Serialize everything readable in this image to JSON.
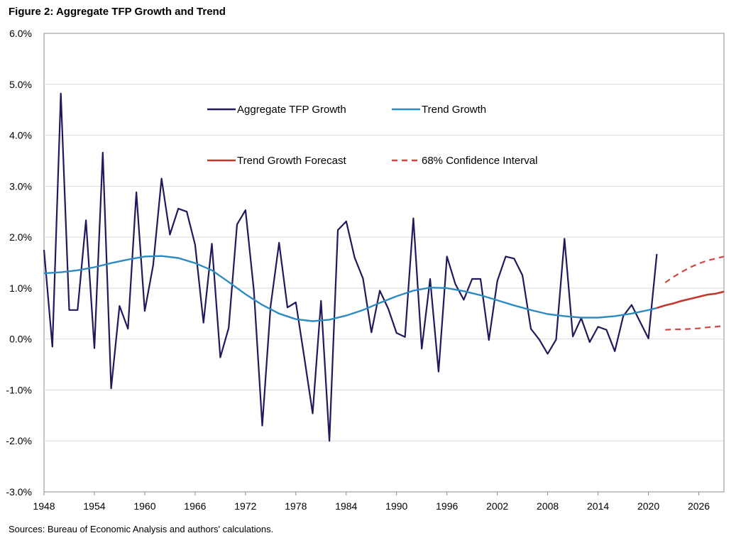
{
  "chart_data": {
    "type": "line",
    "title": "Figure 2: Aggregate TFP Growth and Trend",
    "source": "Sources: Bureau of Economic Analysis and authors' calculations.",
    "xlabel": "",
    "ylabel": "",
    "xlim": [
      1948,
      2029
    ],
    "ylim": [
      -3.0,
      6.0
    ],
    "y_ticks": [
      -3.0,
      -2.0,
      -1.0,
      0.0,
      1.0,
      2.0,
      3.0,
      4.0,
      5.0,
      6.0
    ],
    "y_tick_labels": [
      "-3.0%",
      "-2.0%",
      "-1.0%",
      "0.0%",
      "1.0%",
      "2.0%",
      "3.0%",
      "4.0%",
      "5.0%",
      "6.0%"
    ],
    "x_ticks": [
      1948,
      1954,
      1960,
      1966,
      1972,
      1978,
      1984,
      1990,
      1996,
      2002,
      2008,
      2014,
      2020,
      2026
    ],
    "x_tick_labels": [
      "1948",
      "1954",
      "1960",
      "1966",
      "1972",
      "1978",
      "1984",
      "1990",
      "1996",
      "2002",
      "2008",
      "2014",
      "2020",
      "2026"
    ],
    "grid": "horizontal",
    "legend_position": "upper-middle",
    "series": [
      {
        "name": "Aggregate TFP Growth",
        "color": "#1f1a5c",
        "style": "solid",
        "x": [
          1948,
          1949,
          1950,
          1951,
          1952,
          1953,
          1954,
          1955,
          1956,
          1957,
          1958,
          1959,
          1960,
          1961,
          1962,
          1963,
          1964,
          1965,
          1966,
          1967,
          1968,
          1969,
          1970,
          1971,
          1972,
          1973,
          1974,
          1975,
          1976,
          1977,
          1978,
          1979,
          1980,
          1981,
          1982,
          1983,
          1984,
          1985,
          1986,
          1987,
          1988,
          1989,
          1990,
          1991,
          1992,
          1993,
          1994,
          1995,
          1996,
          1997,
          1998,
          1999,
          2000,
          2001,
          2002,
          2003,
          2004,
          2005,
          2006,
          2007,
          2008,
          2009,
          2010,
          2011,
          2012,
          2013,
          2014,
          2015,
          2016,
          2017,
          2018,
          2019,
          2020,
          2021
        ],
        "values": [
          1.75,
          -0.15,
          4.82,
          0.57,
          0.57,
          2.33,
          -0.18,
          3.66,
          -0.97,
          0.65,
          0.2,
          2.88,
          0.55,
          1.45,
          3.15,
          2.05,
          2.56,
          2.5,
          1.85,
          0.32,
          1.87,
          -0.36,
          0.22,
          2.25,
          2.53,
          0.95,
          -1.7,
          0.65,
          1.89,
          0.62,
          0.72,
          -0.35,
          -1.46,
          0.75,
          -2.0,
          2.14,
          2.31,
          1.6,
          1.19,
          0.13,
          0.95,
          0.6,
          0.12,
          0.04,
          2.37,
          -0.19,
          1.18,
          -0.64,
          1.62,
          1.08,
          0.77,
          1.18,
          1.18,
          -0.02,
          1.14,
          1.62,
          1.58,
          1.25,
          0.2,
          -0.01,
          -0.29,
          -0.01,
          1.97,
          0.05,
          0.41,
          -0.06,
          0.24,
          0.18,
          -0.24,
          0.45,
          0.67,
          0.34,
          0.01,
          1.67
        ]
      },
      {
        "name": "Trend Growth",
        "color": "#2e8bc0",
        "style": "solid",
        "x": [
          1948,
          1950,
          1952,
          1954,
          1956,
          1958,
          1960,
          1962,
          1964,
          1966,
          1968,
          1970,
          1972,
          1974,
          1976,
          1978,
          1980,
          1982,
          1984,
          1986,
          1988,
          1990,
          1992,
          1994,
          1996,
          1998,
          2000,
          2002,
          2004,
          2006,
          2008,
          2010,
          2012,
          2014,
          2016,
          2018,
          2020,
          2021
        ],
        "values": [
          1.29,
          1.31,
          1.35,
          1.41,
          1.49,
          1.56,
          1.62,
          1.63,
          1.59,
          1.49,
          1.35,
          1.12,
          0.88,
          0.67,
          0.5,
          0.39,
          0.35,
          0.38,
          0.46,
          0.57,
          0.71,
          0.84,
          0.95,
          1.01,
          1.0,
          0.94,
          0.86,
          0.76,
          0.66,
          0.57,
          0.49,
          0.45,
          0.42,
          0.42,
          0.45,
          0.5,
          0.57,
          0.61
        ]
      },
      {
        "name": "Trend Growth Forecast",
        "color": "#c0392b",
        "style": "solid",
        "x": [
          2021,
          2022,
          2023,
          2024,
          2025,
          2026,
          2027,
          2028,
          2029
        ],
        "values": [
          0.61,
          0.66,
          0.7,
          0.75,
          0.79,
          0.83,
          0.87,
          0.89,
          0.93
        ]
      },
      {
        "name": "68% Confidence Interval",
        "color": "#d64541",
        "style": "dashed",
        "x": [
          2022,
          2023,
          2024,
          2025,
          2026,
          2027,
          2028,
          2029
        ],
        "values": [
          1.11,
          1.22,
          1.32,
          1.41,
          1.48,
          1.54,
          1.58,
          1.62
        ]
      },
      {
        "name": "68% Confidence Interval (lower)",
        "color": "#d64541",
        "style": "dashed",
        "show_in_legend": false,
        "x": [
          2022,
          2023,
          2024,
          2025,
          2026,
          2027,
          2028,
          2029
        ],
        "values": [
          0.18,
          0.19,
          0.19,
          0.2,
          0.21,
          0.23,
          0.24,
          0.26
        ]
      }
    ]
  }
}
